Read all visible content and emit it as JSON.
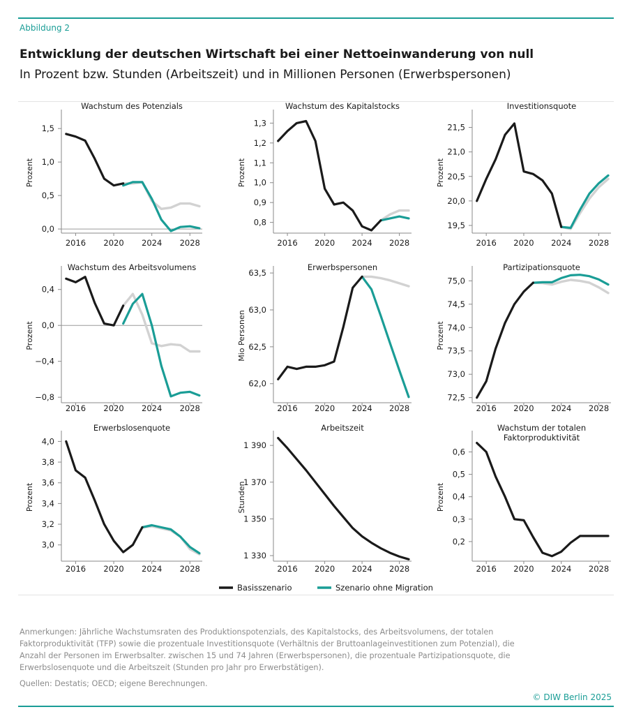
{
  "header": {
    "figure_label": "Abbildung 2",
    "title": "Entwicklung der deutschen Wirtschaft bei einer Nettoeinwanderung von null",
    "subtitle": "In Prozent bzw. Stunden (Arbeitszeit) und in Millionen Personen (Erwerbspersonen)"
  },
  "colors": {
    "basis": "#1a1a1a",
    "migration": "#1a9d96",
    "overlap": "#d2d2d2",
    "axis": "#8a8a8a",
    "accent": "#1a9d96"
  },
  "legend": {
    "basis": "Basisszenario",
    "migration": "Szenario ohne Migration"
  },
  "footer": {
    "notes": "Anmerkungen: Jährliche Wachstumsraten des Produktionspotenzials, des Kapitalstocks, des Arbeitsvolumens, der totalen Faktorproduktivität (TFP) sowie die prozentuale Investitionsquote (Verhältnis der Bruttoanlageinvestitionen zum Potenzial), die Anzahl der Personen im Erwerbsalter. zwischen 15 und 74 Jahren (Erwerbspersonen), die prozentuale Partizipationsquote, die Erwerbslosenquote und die Arbeitszeit (Stunden pro Jahr pro Erwerbstätigen).",
    "sources": "Quellen: Destatis; OECD; eigene Berechnungen.",
    "copyright": "© DIW Berlin 2025"
  },
  "chart_data": [
    {
      "type": "line",
      "title": "Wachstum des Potenzials",
      "ylabel": "Prozent",
      "xlim": [
        2014.5,
        2029.3
      ],
      "ylim": [
        -0.02,
        1.7
      ],
      "xticks": [
        2016,
        2020,
        2024,
        2028
      ],
      "xtick_labels": [
        "2016",
        "2020",
        "2024",
        "2028"
      ],
      "yticks": [
        0,
        0.5,
        1.0,
        1.5
      ],
      "ytick_labels": [
        "0,0",
        "0,5",
        "1,0",
        "1,5"
      ],
      "zero_line": true,
      "series": [
        {
          "name": "Basisszenario",
          "x": [
            2015,
            2016,
            2017,
            2018,
            2019,
            2020,
            2021,
            2022,
            2023,
            2024,
            2025,
            2026,
            2027,
            2028,
            2029
          ],
          "values": [
            1.42,
            1.38,
            1.32,
            1.05,
            0.75,
            0.65,
            0.68,
            0.68,
            0.7,
            0.42,
            0.3,
            0.32,
            0.38,
            0.38,
            0.34
          ]
        },
        {
          "name": "Szenario ohne Migration",
          "x": [
            2021,
            2022,
            2023,
            2024,
            2025,
            2026,
            2027,
            2028,
            2029
          ],
          "values": [
            0.65,
            0.7,
            0.7,
            0.45,
            0.14,
            -0.03,
            0.03,
            0.04,
            0.01
          ]
        }
      ]
    },
    {
      "type": "line",
      "title": "Wachstum des Kapitalstocks",
      "ylabel": "Prozent",
      "xlim": [
        2014.5,
        2029.3
      ],
      "ylim": [
        0.76,
        1.34
      ],
      "xticks": [
        2016,
        2020,
        2024,
        2028
      ],
      "xtick_labels": [
        "2016",
        "2020",
        "2024",
        "2028"
      ],
      "yticks": [
        0.8,
        0.9,
        1.0,
        1.1,
        1.2,
        1.3
      ],
      "ytick_labels": [
        "0,8",
        "0,9",
        "1,0",
        "1,1",
        "1,2",
        "1,3"
      ],
      "series": [
        {
          "name": "Basisszenario",
          "x": [
            2015,
            2016,
            2017,
            2018,
            2019,
            2020,
            2021,
            2022,
            2023,
            2024,
            2025,
            2026,
            2027,
            2028,
            2029
          ],
          "values": [
            1.21,
            1.26,
            1.3,
            1.31,
            1.21,
            0.97,
            0.89,
            0.9,
            0.86,
            0.78,
            0.76,
            0.81,
            0.84,
            0.86,
            0.86
          ]
        },
        {
          "name": "Szenario ohne Migration",
          "x": [
            2026,
            2027,
            2028,
            2029
          ],
          "values": [
            0.81,
            0.82,
            0.83,
            0.82
          ]
        }
      ]
    },
    {
      "type": "line",
      "title": "Investitionsquote",
      "ylabel": "Prozent",
      "xlim": [
        2014.5,
        2029.3
      ],
      "ylim": [
        19.4,
        21.75
      ],
      "xticks": [
        2016,
        2020,
        2024,
        2028
      ],
      "xtick_labels": [
        "2016",
        "2020",
        "2024",
        "2028"
      ],
      "yticks": [
        19.5,
        20.0,
        20.5,
        21.0,
        21.5
      ],
      "ytick_labels": [
        "19,5",
        "20,0",
        "20,5",
        "21,0",
        "21,5"
      ],
      "series": [
        {
          "name": "Basisszenario",
          "x": [
            2015,
            2016,
            2017,
            2018,
            2019,
            2020,
            2021,
            2022,
            2023,
            2024,
            2025,
            2026,
            2027,
            2028,
            2029
          ],
          "values": [
            20.0,
            20.45,
            20.85,
            21.35,
            21.58,
            20.6,
            20.55,
            20.42,
            20.15,
            19.47,
            19.43,
            19.75,
            20.05,
            20.28,
            20.45
          ]
        },
        {
          "name": "Szenario ohne Migration",
          "x": [
            2024,
            2025,
            2026,
            2027,
            2028,
            2029
          ],
          "values": [
            19.47,
            19.45,
            19.82,
            20.15,
            20.36,
            20.52
          ]
        }
      ]
    },
    {
      "type": "line",
      "title": "Wachstum des Arbeitsvolumens",
      "ylabel": "Prozent",
      "xlim": [
        2014.5,
        2029.3
      ],
      "ylim": [
        -0.83,
        0.6
      ],
      "xticks": [
        2016,
        2020,
        2024,
        2028
      ],
      "xtick_labels": [
        "2016",
        "2020",
        "2024",
        "2028"
      ],
      "yticks": [
        -0.8,
        -0.4,
        0.0,
        0.4
      ],
      "ytick_labels": [
        "−0,8",
        "−0,4",
        "0,0",
        "0,4"
      ],
      "zero_line": true,
      "series": [
        {
          "name": "Basisszenario",
          "x": [
            2015,
            2016,
            2017,
            2018,
            2019,
            2020,
            2021,
            2022,
            2023,
            2024,
            2025,
            2026,
            2027,
            2028,
            2029
          ],
          "values": [
            0.52,
            0.48,
            0.54,
            0.25,
            0.02,
            0.0,
            0.22,
            0.35,
            0.12,
            -0.2,
            -0.23,
            -0.21,
            -0.22,
            -0.29,
            -0.29
          ]
        },
        {
          "name": "Szenario ohne Migration",
          "x": [
            2021,
            2022,
            2023,
            2024,
            2025,
            2026,
            2027,
            2028,
            2029
          ],
          "values": [
            0.02,
            0.24,
            0.35,
            0.0,
            -0.45,
            -0.79,
            -0.75,
            -0.74,
            -0.78
          ]
        }
      ]
    },
    {
      "type": "line",
      "title": "Erwerbspersonen",
      "ylabel": "Mio Personen",
      "xlim": [
        2014.5,
        2029.3
      ],
      "ylim": [
        61.78,
        63.52
      ],
      "xticks": [
        2016,
        2020,
        2024,
        2028
      ],
      "xtick_labels": [
        "2016",
        "2020",
        "2024",
        "2028"
      ],
      "yticks": [
        62.0,
        62.5,
        63.0,
        63.5
      ],
      "ytick_labels": [
        "62,0",
        "62,5",
        "63,0",
        "63,5"
      ],
      "series": [
        {
          "name": "Basisszenario",
          "x": [
            2015,
            2016,
            2017,
            2018,
            2019,
            2020,
            2021,
            2022,
            2023,
            2024,
            2025,
            2026,
            2027,
            2028,
            2029
          ],
          "values": [
            62.06,
            62.23,
            62.2,
            62.23,
            62.23,
            62.25,
            62.3,
            62.77,
            63.3,
            63.45,
            63.45,
            63.43,
            63.4,
            63.36,
            63.32
          ]
        },
        {
          "name": "Szenario ohne Migration",
          "x": [
            2024,
            2025,
            2026,
            2027,
            2028,
            2029
          ],
          "values": [
            63.45,
            63.28,
            62.92,
            62.55,
            62.18,
            61.82
          ]
        }
      ]
    },
    {
      "type": "line",
      "title": "Partizipationsquote",
      "ylabel": "Prozent",
      "xlim": [
        2014.5,
        2029.3
      ],
      "ylim": [
        72.45,
        75.2
      ],
      "xticks": [
        2016,
        2020,
        2024,
        2028
      ],
      "xtick_labels": [
        "2016",
        "2020",
        "2024",
        "2028"
      ],
      "yticks": [
        72.5,
        73.0,
        73.5,
        74.0,
        74.5,
        75.0
      ],
      "ytick_labels": [
        "72,5",
        "73,0",
        "73,5",
        "74,0",
        "74,5",
        "75,0"
      ],
      "series": [
        {
          "name": "Basisszenario",
          "x": [
            2015,
            2016,
            2017,
            2018,
            2019,
            2020,
            2021,
            2022,
            2023,
            2024,
            2025,
            2026,
            2027,
            2028,
            2029
          ],
          "values": [
            72.5,
            72.85,
            73.55,
            74.1,
            74.5,
            74.77,
            74.96,
            74.95,
            74.92,
            74.98,
            75.02,
            75.0,
            74.96,
            74.86,
            74.74
          ]
        },
        {
          "name": "Szenario ohne Migration",
          "x": [
            2021,
            2022,
            2023,
            2024,
            2025,
            2026,
            2027,
            2028,
            2029
          ],
          "values": [
            74.96,
            74.97,
            74.97,
            75.06,
            75.12,
            75.13,
            75.1,
            75.03,
            74.92
          ]
        }
      ]
    },
    {
      "type": "line",
      "title": "Erwerbslosenquote",
      "ylabel": "Prozent",
      "xlim": [
        2014.5,
        2029.3
      ],
      "ylim": [
        2.87,
        4.05
      ],
      "xticks": [
        2016,
        2020,
        2024,
        2028
      ],
      "xtick_labels": [
        "2016",
        "2020",
        "2024",
        "2028"
      ],
      "yticks": [
        3.0,
        3.2,
        3.4,
        3.6,
        3.8,
        4.0
      ],
      "ytick_labels": [
        "3,0",
        "3,2",
        "3,4",
        "3,6",
        "3,8",
        "4,0"
      ],
      "series": [
        {
          "name": "Basisszenario",
          "x": [
            2015,
            2016,
            2017,
            2018,
            2019,
            2020,
            2021,
            2022,
            2023,
            2024,
            2025,
            2026,
            2027,
            2028,
            2029
          ],
          "values": [
            4.0,
            3.72,
            3.65,
            3.43,
            3.2,
            3.04,
            2.93,
            3.0,
            3.17,
            3.18,
            3.16,
            3.14,
            3.08,
            2.96,
            2.91
          ]
        },
        {
          "name": "Szenario ohne Migration",
          "x": [
            2023,
            2024,
            2025,
            2026,
            2027,
            2028,
            2029
          ],
          "values": [
            3.17,
            3.19,
            3.17,
            3.15,
            3.08,
            2.98,
            2.92
          ]
        }
      ]
    },
    {
      "type": "line",
      "title": "Arbeitszeit",
      "ylabel": "Stunden",
      "xlim": [
        2014.5,
        2029.3
      ],
      "ylim": [
        1328.5,
        1395
      ],
      "xticks": [
        2016,
        2020,
        2024,
        2028
      ],
      "xtick_labels": [
        "2016",
        "2020",
        "2024",
        "2028"
      ],
      "yticks": [
        1330,
        1350,
        1370,
        1390
      ],
      "ytick_labels": [
        "1 330",
        "1 350",
        "1 370",
        "1 390"
      ],
      "series": [
        {
          "name": "Basisszenario",
          "x": [
            2015,
            2016,
            2017,
            2018,
            2019,
            2020,
            2021,
            2022,
            2023,
            2024,
            2025,
            2026,
            2027,
            2028,
            2029
          ],
          "values": [
            1394,
            1388.5,
            1382.5,
            1376.5,
            1370,
            1363.5,
            1357,
            1351,
            1345,
            1340.5,
            1337,
            1334,
            1331.5,
            1329.5,
            1328
          ]
        },
        {
          "name": "Szenario ohne Migration",
          "x": [],
          "values": []
        }
      ]
    },
    {
      "type": "line",
      "title": "Wachstum der totalen Faktorproduktivität",
      "ylabel": "Prozent",
      "title_lines": [
        "Wachstum der totalen",
        "Faktorproduktivität"
      ],
      "xlim": [
        2014.5,
        2029.3
      ],
      "ylim": [
        0.125,
        0.67
      ],
      "xticks": [
        2016,
        2020,
        2024,
        2028
      ],
      "xtick_labels": [
        "2016",
        "2020",
        "2024",
        "2028"
      ],
      "yticks": [
        0.2,
        0.3,
        0.4,
        0.5,
        0.6
      ],
      "ytick_labels": [
        "0,2",
        "0,3",
        "0,4",
        "0,5",
        "0,6"
      ],
      "series": [
        {
          "name": "Basisszenario",
          "x": [
            2015,
            2016,
            2017,
            2018,
            2019,
            2020,
            2021,
            2022,
            2023,
            2024,
            2025,
            2026,
            2027,
            2028,
            2029
          ],
          "values": [
            0.64,
            0.6,
            0.49,
            0.4,
            0.3,
            0.295,
            0.22,
            0.15,
            0.135,
            0.155,
            0.195,
            0.225,
            0.225,
            0.225,
            0.225
          ]
        },
        {
          "name": "Szenario ohne Migration",
          "x": [],
          "values": []
        }
      ]
    }
  ]
}
